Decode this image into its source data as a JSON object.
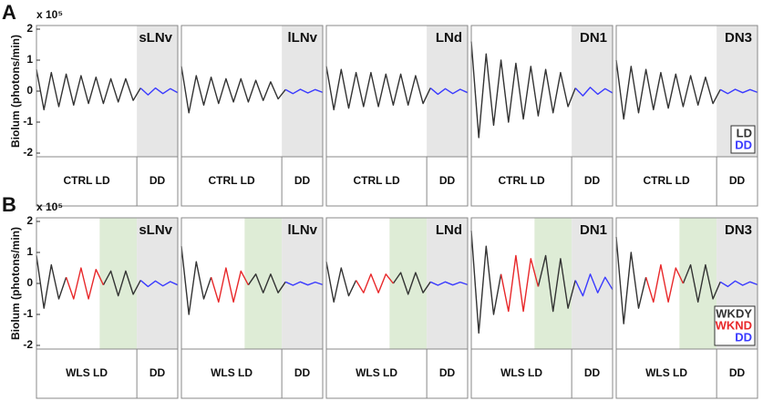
{
  "chart_data": [
    {
      "type": "line",
      "panel_label": "A",
      "title": "sLNv",
      "ylabel": "Biolum (photons/min)",
      "ymultiplier": "x 10⁵",
      "ylim": [
        -2,
        2
      ],
      "yticks": [
        -2,
        -1,
        0,
        1,
        2
      ],
      "xlim": [
        0,
        19
      ],
      "shading": [
        {
          "from": 13.5,
          "to": 19,
          "color": "#e6e6e6"
        }
      ],
      "conditions": [
        "CTRL LD",
        "DD"
      ],
      "series": [
        {
          "name": "LD",
          "color": "#333333",
          "values": [
            0.7,
            -0.6,
            0.6,
            -0.5,
            0.55,
            -0.45,
            0.5,
            -0.4,
            0.45,
            -0.4,
            0.4,
            -0.35,
            0.4,
            -0.3,
            0.1,
            null,
            null,
            null,
            null,
            null
          ]
        },
        {
          "name": "DD",
          "color": "#3a3aff",
          "values": [
            null,
            null,
            null,
            null,
            null,
            null,
            null,
            null,
            null,
            null,
            null,
            null,
            null,
            null,
            0.1,
            -0.12,
            0.1,
            -0.08,
            0.08,
            -0.05
          ]
        }
      ]
    },
    {
      "type": "line",
      "title": "lLNv",
      "ylim": [
        -2,
        2
      ],
      "xlim": [
        0,
        19
      ],
      "shading": [
        {
          "from": 13.5,
          "to": 19,
          "color": "#e6e6e6"
        }
      ],
      "conditions": [
        "CTRL LD",
        "DD"
      ],
      "series": [
        {
          "name": "LD",
          "color": "#333333",
          "values": [
            0.8,
            -0.7,
            0.5,
            -0.45,
            0.45,
            -0.4,
            0.4,
            -0.35,
            0.4,
            -0.35,
            0.35,
            -0.3,
            0.3,
            -0.25,
            0.05,
            null,
            null,
            null,
            null,
            null
          ]
        },
        {
          "name": "DD",
          "color": "#3a3aff",
          "values": [
            null,
            null,
            null,
            null,
            null,
            null,
            null,
            null,
            null,
            null,
            null,
            null,
            null,
            null,
            0.05,
            -0.08,
            0.06,
            -0.06,
            0.05,
            -0.04
          ]
        }
      ]
    },
    {
      "type": "line",
      "title": "LNd",
      "ylim": [
        -2,
        2
      ],
      "xlim": [
        0,
        19
      ],
      "shading": [
        {
          "from": 13.5,
          "to": 19,
          "color": "#e6e6e6"
        }
      ],
      "conditions": [
        "CTRL LD",
        "DD"
      ],
      "series": [
        {
          "name": "LD",
          "color": "#333333",
          "values": [
            0.8,
            -0.6,
            0.7,
            -0.55,
            0.6,
            -0.5,
            0.6,
            -0.5,
            0.55,
            -0.45,
            0.55,
            -0.45,
            0.5,
            -0.4,
            0.1,
            null,
            null,
            null,
            null,
            null
          ]
        },
        {
          "name": "DD",
          "color": "#3a3aff",
          "values": [
            null,
            null,
            null,
            null,
            null,
            null,
            null,
            null,
            null,
            null,
            null,
            null,
            null,
            null,
            0.1,
            -0.1,
            0.08,
            -0.08,
            0.06,
            -0.05
          ]
        }
      ]
    },
    {
      "type": "line",
      "title": "DN1",
      "ylim": [
        -2,
        2
      ],
      "xlim": [
        0,
        19
      ],
      "shading": [
        {
          "from": 13.5,
          "to": 19,
          "color": "#e6e6e6"
        }
      ],
      "conditions": [
        "CTRL LD",
        "DD"
      ],
      "series": [
        {
          "name": "LD",
          "color": "#333333",
          "values": [
            1.6,
            -1.5,
            1.2,
            -1.1,
            1.0,
            -1.0,
            0.9,
            -0.9,
            0.8,
            -0.8,
            0.7,
            -0.7,
            0.6,
            -0.5,
            0.1,
            null,
            null,
            null,
            null,
            null
          ]
        },
        {
          "name": "DD",
          "color": "#3a3aff",
          "values": [
            null,
            null,
            null,
            null,
            null,
            null,
            null,
            null,
            null,
            null,
            null,
            null,
            null,
            null,
            0.1,
            -0.15,
            0.12,
            -0.1,
            0.08,
            -0.06
          ]
        }
      ]
    },
    {
      "type": "line",
      "title": "DN3",
      "ylim": [
        -2,
        2
      ],
      "xlim": [
        0,
        19
      ],
      "legend": "lower right",
      "shading": [
        {
          "from": 13.5,
          "to": 19,
          "color": "#e6e6e6"
        }
      ],
      "conditions": [
        "CTRL LD",
        "DD"
      ],
      "series": [
        {
          "name": "LD",
          "color": "#333333",
          "values": [
            1.0,
            -0.9,
            0.8,
            -0.7,
            0.7,
            -0.6,
            0.6,
            -0.55,
            0.55,
            -0.5,
            0.5,
            -0.45,
            0.45,
            -0.4,
            0.05,
            null,
            null,
            null,
            null,
            null
          ]
        },
        {
          "name": "DD",
          "color": "#3a3aff",
          "values": [
            null,
            null,
            null,
            null,
            null,
            null,
            null,
            null,
            null,
            null,
            null,
            null,
            null,
            null,
            0.05,
            -0.08,
            0.06,
            -0.05,
            0.05,
            -0.04
          ]
        }
      ]
    },
    {
      "type": "line",
      "panel_label": "B",
      "title": "sLNv",
      "ylabel": "Biolum (photons/min)",
      "ymultiplier": "x 10⁵",
      "ylim": [
        -2,
        2
      ],
      "yticks": [
        -2,
        -1,
        0,
        1,
        2
      ],
      "xlim": [
        0,
        19
      ],
      "shading": [
        {
          "from": 8.5,
          "to": 13.5,
          "color": "#deecd6"
        },
        {
          "from": 13.5,
          "to": 19,
          "color": "#e6e6e6"
        }
      ],
      "conditions": [
        "WLS LD",
        "DD"
      ],
      "series": [
        {
          "name": "WKDY",
          "color": "#333333",
          "values": [
            0.9,
            -0.8,
            0.6,
            -0.5,
            0.2,
            null,
            null,
            null,
            null,
            -0.05,
            0.4,
            -0.4,
            0.4,
            -0.35,
            0.1,
            null,
            null,
            null,
            null,
            null
          ]
        },
        {
          "name": "WKND",
          "color": "#e8282a",
          "values": [
            null,
            null,
            null,
            null,
            0.2,
            -0.5,
            0.5,
            -0.5,
            0.45,
            -0.05,
            null,
            null,
            null,
            null,
            null,
            null,
            null,
            null,
            null,
            null
          ]
        },
        {
          "name": "DD",
          "color": "#3a3aff",
          "values": [
            null,
            null,
            null,
            null,
            null,
            null,
            null,
            null,
            null,
            null,
            null,
            null,
            null,
            null,
            0.1,
            -0.1,
            0.08,
            -0.08,
            0.06,
            -0.05
          ]
        }
      ]
    },
    {
      "type": "line",
      "title": "lLNv",
      "ylim": [
        -2,
        2
      ],
      "xlim": [
        0,
        19
      ],
      "shading": [
        {
          "from": 8.5,
          "to": 13.5,
          "color": "#deecd6"
        },
        {
          "from": 13.5,
          "to": 19,
          "color": "#e6e6e6"
        }
      ],
      "conditions": [
        "WLS LD",
        "DD"
      ],
      "series": [
        {
          "name": "WKDY",
          "color": "#333333",
          "values": [
            1.2,
            -1.0,
            0.7,
            -0.5,
            0.2,
            null,
            null,
            null,
            null,
            -0.05,
            0.3,
            -0.3,
            0.3,
            -0.3,
            0.05,
            null,
            null,
            null,
            null,
            null
          ]
        },
        {
          "name": "WKND",
          "color": "#e8282a",
          "values": [
            null,
            null,
            null,
            null,
            0.2,
            -0.6,
            0.5,
            -0.6,
            0.4,
            -0.05,
            null,
            null,
            null,
            null,
            null,
            null,
            null,
            null,
            null,
            null
          ]
        },
        {
          "name": "DD",
          "color": "#3a3aff",
          "values": [
            null,
            null,
            null,
            null,
            null,
            null,
            null,
            null,
            null,
            null,
            null,
            null,
            null,
            null,
            0.05,
            -0.06,
            0.05,
            -0.05,
            0.04,
            -0.04
          ]
        }
      ]
    },
    {
      "type": "line",
      "title": "LNd",
      "ylim": [
        -2,
        2
      ],
      "xlim": [
        0,
        19
      ],
      "shading": [
        {
          "from": 8.5,
          "to": 13.5,
          "color": "#deecd6"
        },
        {
          "from": 13.5,
          "to": 19,
          "color": "#e6e6e6"
        }
      ],
      "conditions": [
        "WLS LD",
        "DD"
      ],
      "series": [
        {
          "name": "WKDY",
          "color": "#333333",
          "values": [
            0.7,
            -0.6,
            0.5,
            -0.4,
            0.1,
            null,
            null,
            null,
            null,
            0,
            0.35,
            -0.35,
            0.35,
            -0.3,
            0.05,
            null,
            null,
            null,
            null,
            null
          ]
        },
        {
          "name": "WKND",
          "color": "#e8282a",
          "values": [
            null,
            null,
            null,
            null,
            0.1,
            -0.3,
            0.3,
            -0.3,
            0.3,
            0,
            null,
            null,
            null,
            null,
            null,
            null,
            null,
            null,
            null,
            null
          ]
        },
        {
          "name": "DD",
          "color": "#3a3aff",
          "values": [
            null,
            null,
            null,
            null,
            null,
            null,
            null,
            null,
            null,
            null,
            null,
            null,
            null,
            null,
            0.05,
            -0.06,
            0.05,
            -0.05,
            0.04,
            -0.04
          ]
        }
      ]
    },
    {
      "type": "line",
      "title": "DN1",
      "ylim": [
        -2,
        2
      ],
      "xlim": [
        0,
        19
      ],
      "shading": [
        {
          "from": 8.5,
          "to": 13.5,
          "color": "#deecd6"
        },
        {
          "from": 13.5,
          "to": 19,
          "color": "#e6e6e6"
        }
      ],
      "conditions": [
        "WLS LD",
        "DD"
      ],
      "series": [
        {
          "name": "WKDY",
          "color": "#333333",
          "values": [
            1.7,
            -1.6,
            1.2,
            -1.0,
            0.3,
            null,
            null,
            null,
            null,
            -0.1,
            0.9,
            -0.9,
            0.8,
            -0.8,
            0.1,
            null,
            null,
            null,
            null,
            null
          ]
        },
        {
          "name": "WKND",
          "color": "#e8282a",
          "values": [
            null,
            null,
            null,
            null,
            0.3,
            -0.9,
            0.9,
            -0.9,
            0.8,
            -0.1,
            null,
            null,
            null,
            null,
            null,
            null,
            null,
            null,
            null,
            null
          ]
        },
        {
          "name": "DD",
          "color": "#3a3aff",
          "values": [
            null,
            null,
            null,
            null,
            null,
            null,
            null,
            null,
            null,
            null,
            null,
            null,
            null,
            null,
            0.1,
            -0.4,
            0.3,
            -0.3,
            0.2,
            -0.2
          ]
        }
      ]
    },
    {
      "type": "line",
      "title": "DN3",
      "ylim": [
        -2,
        2
      ],
      "xlim": [
        0,
        19
      ],
      "legend": "lower right",
      "shading": [
        {
          "from": 8.5,
          "to": 13.5,
          "color": "#deecd6"
        },
        {
          "from": 13.5,
          "to": 19,
          "color": "#e6e6e6"
        }
      ],
      "conditions": [
        "WLS LD",
        "DD"
      ],
      "series": [
        {
          "name": "WKDY",
          "color": "#333333",
          "values": [
            1.5,
            -1.3,
            1.0,
            -0.8,
            0.2,
            null,
            null,
            null,
            null,
            0,
            0.6,
            -0.6,
            0.6,
            -0.5,
            0.05,
            null,
            null,
            null,
            null,
            null
          ]
        },
        {
          "name": "WKND",
          "color": "#e8282a",
          "values": [
            null,
            null,
            null,
            null,
            0.2,
            -0.6,
            0.6,
            -0.6,
            0.5,
            0,
            null,
            null,
            null,
            null,
            null,
            null,
            null,
            null,
            null,
            null
          ]
        },
        {
          "name": "DD",
          "color": "#3a3aff",
          "values": [
            null,
            null,
            null,
            null,
            null,
            null,
            null,
            null,
            null,
            null,
            null,
            null,
            null,
            null,
            0.05,
            -0.1,
            0.08,
            -0.06,
            0.05,
            -0.04
          ]
        }
      ]
    }
  ]
}
